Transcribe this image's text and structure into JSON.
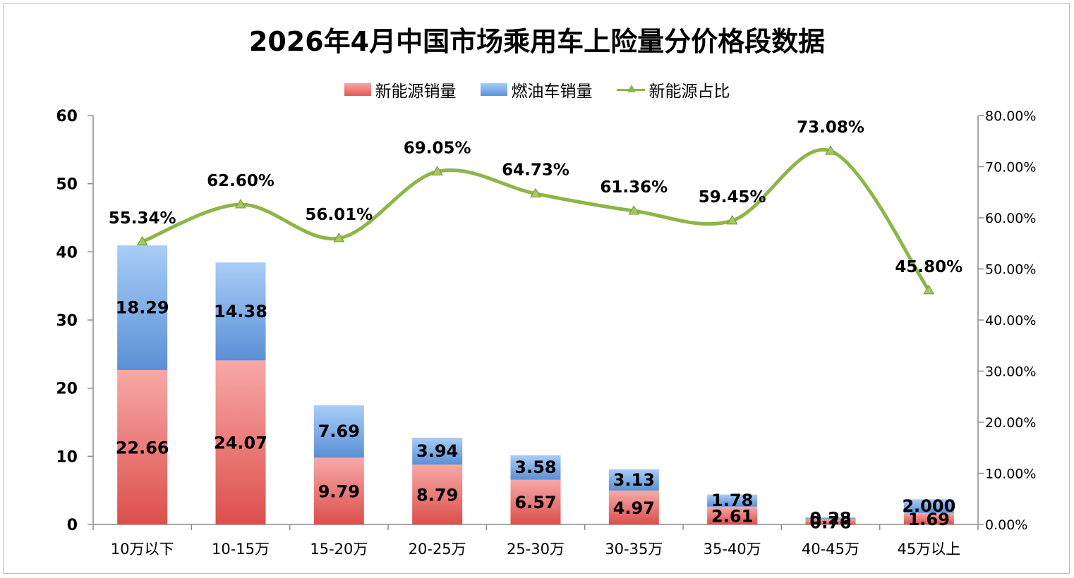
{
  "chart_data": {
    "type": "bar",
    "stacked": true,
    "title": "2026年4月中国市场乘用车上险量分价格段数据",
    "categories": [
      "10万以下",
      "10-15万",
      "15-20万",
      "20-25万",
      "25-30万",
      "30-35万",
      "35-40万",
      "40-45万",
      "45万以上"
    ],
    "series": [
      {
        "name": "新能源销量",
        "color": "#e05a57",
        "axis": "left",
        "values": [
          22.66,
          24.07,
          9.79,
          8.79,
          6.57,
          4.97,
          2.61,
          0.76,
          1.69
        ],
        "labels": [
          "22.66",
          "24.07",
          "9.79",
          "8.79",
          "6.57",
          "4.97",
          "2.61",
          "0.76",
          "1.69"
        ]
      },
      {
        "name": "燃油车销量",
        "color": "#5b92d8",
        "axis": "left",
        "values": [
          18.29,
          14.38,
          7.69,
          3.94,
          3.58,
          3.13,
          1.78,
          0.28,
          2.0
        ],
        "labels": [
          "18.29",
          "14.38",
          "7.69",
          "3.94",
          "3.58",
          "3.13",
          "1.78",
          "0.28",
          "2.000"
        ]
      },
      {
        "name": "新能源占比",
        "type": "line",
        "color": "#8db548",
        "axis": "right",
        "values": [
          55.34,
          62.6,
          56.01,
          69.05,
          64.73,
          61.36,
          59.45,
          73.08,
          45.8
        ],
        "labels": [
          "55.34%",
          "62.60%",
          "56.01%",
          "69.05%",
          "64.73%",
          "61.36%",
          "59.45%",
          "73.08%",
          "45.80%"
        ]
      }
    ],
    "ylim": [
      0,
      60
    ],
    "yticks": [
      "0",
      "10",
      "20",
      "30",
      "40",
      "50",
      "60"
    ],
    "y2lim": [
      0,
      80
    ],
    "y2ticks": [
      "0.00%",
      "10.00%",
      "20.00%",
      "30.00%",
      "40.00%",
      "50.00%",
      "60.00%",
      "70.00%",
      "80.00%"
    ],
    "legend_position": "top-center",
    "grid": false
  }
}
